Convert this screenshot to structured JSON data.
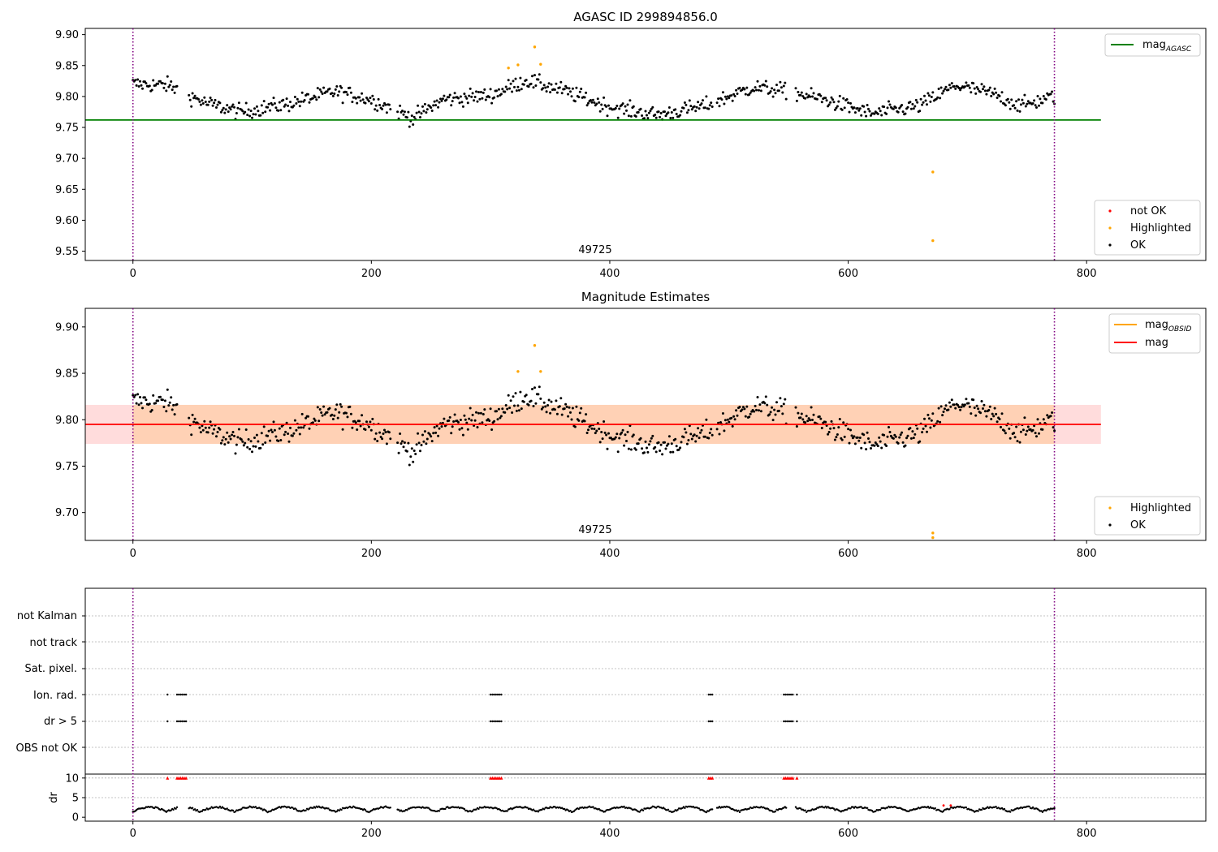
{
  "colors": {
    "ok": "#000000",
    "highlighted": "#ffa500",
    "not_ok": "#ff0000",
    "agasc_line": "#008000",
    "obsid_line": "#ffa500",
    "mag_line": "#ff0000",
    "mag_band": "#ffd8d8",
    "obsid_band": "#ffcfb0",
    "boundary": "#800080",
    "grid": "#b0b0b0"
  },
  "chart_data": [
    {
      "type": "scatter",
      "title": "AGASC ID 299894856.0",
      "annotation": "49725",
      "xlim": [
        -40,
        900
      ],
      "ylim": [
        9.535,
        9.91
      ],
      "xticks": [
        0,
        200,
        400,
        600,
        800
      ],
      "yticks": [
        9.55,
        9.6,
        9.65,
        9.7,
        9.75,
        9.8,
        9.85,
        9.9
      ],
      "ytick_labels": [
        "9.55",
        "9.60",
        "9.65",
        "9.70",
        "9.75",
        "9.80",
        "9.85",
        "9.90"
      ],
      "lines": [
        {
          "name": "mag",
          "subscript": "AGASC",
          "value": 9.762,
          "x_range": [
            -40,
            812
          ],
          "color": "agasc_line"
        }
      ],
      "vertical_lines": [
        0,
        773
      ],
      "highlighted_points": [
        {
          "x": 315,
          "y": 9.846
        },
        {
          "x": 323,
          "y": 9.851
        },
        {
          "x": 337,
          "y": 9.88
        },
        {
          "x": 342,
          "y": 9.852
        },
        {
          "x": 671,
          "y": 9.678
        },
        {
          "x": 671,
          "y": 9.567
        }
      ],
      "legends": [
        {
          "position": "upper right",
          "entries": [
            {
              "label": "mag",
              "subscript": "AGASC",
              "marker": "line",
              "color": "agasc_line"
            }
          ]
        },
        {
          "position": "lower right",
          "entries": [
            {
              "label": "not OK",
              "marker": "dot",
              "color": "not_ok"
            },
            {
              "label": "Highlighted",
              "marker": "dot",
              "color": "highlighted"
            },
            {
              "label": "OK",
              "marker": "dot",
              "color": "ok"
            }
          ]
        }
      ]
    },
    {
      "type": "scatter",
      "title": "Magnitude Estimates",
      "annotation": "49725",
      "xlim": [
        -40,
        900
      ],
      "ylim": [
        9.67,
        9.92
      ],
      "xticks": [
        0,
        200,
        400,
        600,
        800
      ],
      "yticks": [
        9.7,
        9.75,
        9.8,
        9.85,
        9.9
      ],
      "ytick_labels": [
        "9.70",
        "9.75",
        "9.80",
        "9.85",
        "9.90"
      ],
      "lines": [
        {
          "name": "mag",
          "subscript": "OBSID",
          "value": 9.795,
          "x_range": [
            0,
            773
          ],
          "color": "obsid_line"
        },
        {
          "name": "mag",
          "subscript": "",
          "value": 9.795,
          "x_range": [
            -40,
            812
          ],
          "color": "mag_line"
        }
      ],
      "bands": [
        {
          "low": 9.774,
          "high": 9.816,
          "x_range": [
            -40,
            812
          ],
          "color": "mag_band"
        },
        {
          "low": 9.774,
          "high": 9.816,
          "x_range": [
            0,
            773
          ],
          "color": "obsid_band"
        }
      ],
      "vertical_lines": [
        0,
        773
      ],
      "highlighted_points": [
        {
          "x": 323,
          "y": 9.852
        },
        {
          "x": 337,
          "y": 9.88
        },
        {
          "x": 342,
          "y": 9.852
        },
        {
          "x": 671,
          "y": 9.678
        },
        {
          "x": 671,
          "y": 9.673
        }
      ],
      "legends": [
        {
          "position": "upper right",
          "entries": [
            {
              "label": "mag",
              "subscript": "OBSID",
              "marker": "line",
              "color": "obsid_line"
            },
            {
              "label": "mag",
              "subscript": "",
              "marker": "line",
              "color": "mag_line"
            }
          ]
        },
        {
          "position": "lower right",
          "entries": [
            {
              "label": "Highlighted",
              "marker": "dot",
              "color": "highlighted"
            },
            {
              "label": "OK",
              "marker": "dot",
              "color": "ok"
            }
          ]
        }
      ]
    },
    {
      "type": "scatter",
      "title": "",
      "xlim": [
        -40,
        900
      ],
      "xticks": [
        0,
        200,
        400,
        600,
        800
      ],
      "vertical_lines": [
        0,
        773
      ],
      "flag_rows": [
        "not Kalman",
        "not track",
        "Sat. pixel.",
        "Ion. rad.",
        "dr > 5",
        "OBS not OK"
      ],
      "flag_ranges": {
        "Ion. rad.": [
          [
            29,
            29
          ],
          [
            37,
            45
          ],
          [
            300,
            309
          ],
          [
            483,
            486
          ],
          [
            546,
            554
          ],
          [
            557,
            557
          ]
        ],
        "dr > 5": [
          [
            29,
            29
          ],
          [
            37,
            45
          ],
          [
            300,
            309
          ],
          [
            483,
            486
          ],
          [
            546,
            554
          ],
          [
            557,
            557
          ]
        ]
      },
      "dr_panel": {
        "ylabel": "dr",
        "ylim": [
          -1,
          11
        ],
        "yticks": [
          0,
          5,
          10
        ],
        "ytick_labels": [
          "0",
          "5",
          "10"
        ],
        "gridlines": [
          5,
          10
        ],
        "capped_value": 10,
        "capped_ranges": [
          [
            29,
            29
          ],
          [
            37,
            45
          ],
          [
            300,
            309
          ],
          [
            483,
            486
          ],
          [
            546,
            554
          ],
          [
            557,
            557
          ]
        ],
        "red_outliers": [
          {
            "x": 680,
            "y": 3.0
          },
          {
            "x": 686,
            "y": 3.0
          }
        ]
      }
    }
  ]
}
